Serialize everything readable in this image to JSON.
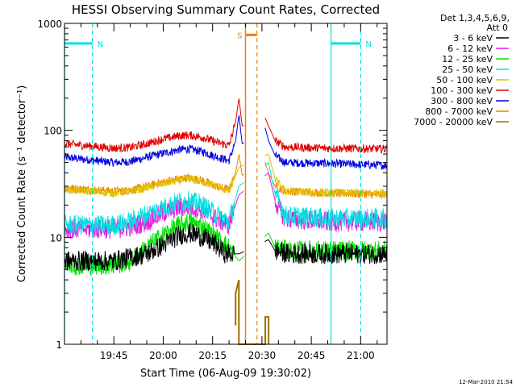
{
  "chart_data": {
    "type": "line",
    "title": "HESSI Observing Summary Count Rates, Corrected",
    "xlabel": "Start Time (06-Aug-09 19:30:02)",
    "ylabel": "Corrected Count Rate (s⁻¹ detector⁻¹)",
    "y_scale": "log",
    "ylim": [
      1,
      1000
    ],
    "y_ticks": [
      {
        "value": 1,
        "label": "1"
      },
      {
        "value": 10,
        "label": "10"
      },
      {
        "value": 100,
        "label": "100"
      },
      {
        "value": 1000,
        "label": "1000"
      }
    ],
    "xlim": [
      "19:30",
      "21:08"
    ],
    "x_ticks": [
      {
        "time": "19:45",
        "label": "19:45"
      },
      {
        "time": "20:00",
        "label": "20:00"
      },
      {
        "time": "20:15",
        "label": "20:15"
      },
      {
        "time": "20:30",
        "label": "20:30"
      },
      {
        "time": "20:45",
        "label": "20:45"
      },
      {
        "time": "21:00",
        "label": "21:00"
      }
    ],
    "legend_header": [
      "Det 1,3,4,5,6,9,",
      "Att 0"
    ],
    "legend_position": "right",
    "series": [
      {
        "name": "3 - 6 keV",
        "color": "#000000",
        "points": [
          [
            "19:30",
            6
          ],
          [
            "19:45",
            6
          ],
          [
            "19:50",
            6.5
          ],
          [
            "19:55",
            7
          ],
          [
            "20:00",
            8.5
          ],
          [
            "20:05",
            10.5
          ],
          [
            "20:08",
            11
          ],
          [
            "20:12",
            10
          ],
          [
            "20:16",
            8.5
          ],
          [
            "20:19",
            7
          ],
          [
            "20:23",
            7
          ],
          [
            "20:32",
            9.5
          ],
          [
            "20:34",
            7.5
          ],
          [
            "20:38",
            7
          ],
          [
            "20:50",
            7
          ],
          [
            "21:08",
            7
          ]
        ]
      },
      {
        "name": "6 - 12 keV",
        "color": "#e020e0",
        "points": [
          [
            "19:30",
            12
          ],
          [
            "19:45",
            12
          ],
          [
            "19:50",
            12.5
          ],
          [
            "19:55",
            14
          ],
          [
            "20:00",
            17
          ],
          [
            "20:05",
            19
          ],
          [
            "20:08",
            19.5
          ],
          [
            "20:12",
            18
          ],
          [
            "20:16",
            15
          ],
          [
            "20:20",
            13
          ],
          [
            "20:23",
            25
          ],
          [
            "20:32",
            40
          ],
          [
            "20:34",
            22
          ],
          [
            "20:37",
            15
          ],
          [
            "20:50",
            14
          ],
          [
            "21:08",
            14
          ]
        ]
      },
      {
        "name": "12 - 25 keV",
        "color": "#00e000",
        "points": [
          [
            "19:30",
            5.5
          ],
          [
            "19:45",
            5.5
          ],
          [
            "19:50",
            6
          ],
          [
            "19:55",
            8
          ],
          [
            "20:00",
            10.5
          ],
          [
            "20:05",
            13
          ],
          [
            "20:08",
            14
          ],
          [
            "20:12",
            12.5
          ],
          [
            "20:16",
            10
          ],
          [
            "20:20",
            8
          ],
          [
            "20:23",
            6
          ],
          [
            "20:32",
            11
          ],
          [
            "20:34",
            8
          ],
          [
            "20:38",
            7.5
          ],
          [
            "20:50",
            7.5
          ],
          [
            "21:08",
            7.5
          ]
        ]
      },
      {
        "name": "25 - 50 keV",
        "color": "#00e0e0",
        "points": [
          [
            "19:30",
            13
          ],
          [
            "19:45",
            13
          ],
          [
            "19:50",
            14
          ],
          [
            "19:55",
            16.5
          ],
          [
            "20:00",
            19
          ],
          [
            "20:05",
            21.5
          ],
          [
            "20:08",
            22
          ],
          [
            "20:12",
            20
          ],
          [
            "20:16",
            16.5
          ],
          [
            "20:20",
            14
          ],
          [
            "20:23",
            30
          ],
          [
            "20:32",
            50
          ],
          [
            "20:34",
            25
          ],
          [
            "20:37",
            16
          ],
          [
            "20:50",
            15
          ],
          [
            "21:08",
            15
          ]
        ]
      },
      {
        "name": "50 - 100 keV",
        "color": "#e0c000",
        "points": [
          [
            "19:30",
            28
          ],
          [
            "19:45",
            26
          ],
          [
            "19:50",
            27
          ],
          [
            "19:55",
            29
          ],
          [
            "20:00",
            32
          ],
          [
            "20:05",
            34
          ],
          [
            "20:08",
            35
          ],
          [
            "20:12",
            33
          ],
          [
            "20:16",
            30
          ],
          [
            "20:20",
            27
          ],
          [
            "20:23",
            45
          ],
          [
            "20:32",
            60
          ],
          [
            "20:34",
            35
          ],
          [
            "20:37",
            27
          ],
          [
            "20:50",
            26
          ],
          [
            "21:08",
            26
          ]
        ]
      },
      {
        "name": "100 - 300 keV",
        "color": "#e00000",
        "points": [
          [
            "19:30",
            75
          ],
          [
            "19:45",
            68
          ],
          [
            "19:50",
            69
          ],
          [
            "19:55",
            75
          ],
          [
            "20:00",
            83
          ],
          [
            "20:05",
            89
          ],
          [
            "20:08",
            90
          ],
          [
            "20:12",
            86
          ],
          [
            "20:16",
            78
          ],
          [
            "20:20",
            72
          ],
          [
            "20:22",
            120
          ],
          [
            "20:23",
            200
          ],
          [
            "20:24",
            110
          ],
          [
            "20:31",
            130
          ],
          [
            "20:32",
            110
          ],
          [
            "20:34",
            80
          ],
          [
            "20:37",
            70
          ],
          [
            "20:50",
            68
          ],
          [
            "21:08",
            67
          ]
        ]
      },
      {
        "name": "300 - 800 keV",
        "color": "#0000e0",
        "points": [
          [
            "19:30",
            56
          ],
          [
            "19:45",
            50
          ],
          [
            "19:50",
            51
          ],
          [
            "19:55",
            56
          ],
          [
            "20:00",
            61
          ],
          [
            "20:05",
            66
          ],
          [
            "20:08",
            67
          ],
          [
            "20:12",
            63
          ],
          [
            "20:16",
            57
          ],
          [
            "20:20",
            52
          ],
          [
            "20:22",
            80
          ],
          [
            "20:23",
            140
          ],
          [
            "20:24",
            75
          ],
          [
            "20:31",
            105
          ],
          [
            "20:32",
            80
          ],
          [
            "20:34",
            58
          ],
          [
            "20:37",
            50
          ],
          [
            "20:50",
            49
          ],
          [
            "21:08",
            47
          ]
        ]
      },
      {
        "name": "800 - 7000 keV",
        "color": "#f08000",
        "points": [
          [
            "19:30",
            29
          ],
          [
            "19:45",
            27
          ],
          [
            "19:50",
            27.5
          ],
          [
            "19:55",
            30
          ],
          [
            "20:00",
            33
          ],
          [
            "20:05",
            35.5
          ],
          [
            "20:08",
            36
          ],
          [
            "20:12",
            34
          ],
          [
            "20:16",
            30
          ],
          [
            "20:20",
            28
          ],
          [
            "20:22",
            40
          ],
          [
            "20:23",
            60
          ],
          [
            "20:24",
            38
          ],
          [
            "20:31",
            50
          ],
          [
            "20:32",
            40
          ],
          [
            "20:34",
            30
          ],
          [
            "20:37",
            27
          ],
          [
            "20:50",
            26
          ],
          [
            "21:08",
            25
          ]
        ]
      },
      {
        "name": "7000 - 20000 keV",
        "color": "#a07000",
        "points": [
          [
            "20:22",
            1.5
          ],
          [
            "20:22",
            3
          ],
          [
            "20:23",
            4
          ],
          [
            "20:23",
            1
          ],
          [
            "20:31",
            1
          ],
          [
            "20:31",
            1.8
          ],
          [
            "20:32",
            1.8
          ],
          [
            "20:32",
            1
          ]
        ]
      }
    ],
    "annotations": [
      {
        "label": "N",
        "kind": "night",
        "color": "#00e0e0",
        "start": "19:30",
        "end": "19:38.5",
        "level": 650
      },
      {
        "label": "N",
        "kind": "night",
        "color": "#00e0e0",
        "start": "20:51",
        "end": "21:00",
        "level": 650
      },
      {
        "label": "S",
        "kind": "saa",
        "color": "#f08000",
        "start": "20:25",
        "end": "20:28.5",
        "level": 780
      }
    ],
    "grid": false
  },
  "footer": {
    "timestamp": "12-Mar-2010 21:54"
  }
}
